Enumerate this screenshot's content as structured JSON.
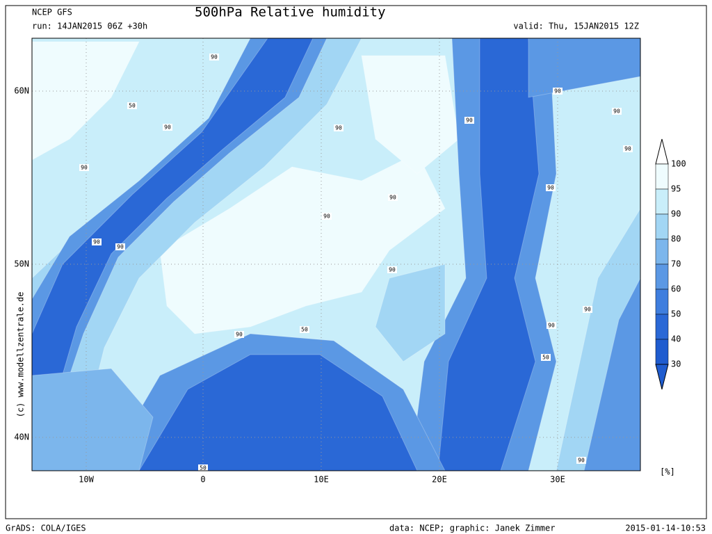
{
  "header": {
    "model": "NCEP GFS",
    "title": "500hPa Relative humidity",
    "run": "run: 14JAN2015 06Z +30h",
    "valid": "valid: Thu, 15JAN2015 12Z"
  },
  "axes": {
    "lat_labels": [
      "60N",
      "50N",
      "40N"
    ],
    "lon_labels": [
      "10W",
      "0",
      "10E",
      "20E",
      "30E"
    ]
  },
  "colorbar": {
    "labels": [
      "100",
      "95",
      "90",
      "80",
      "70",
      "60",
      "50",
      "40",
      "30"
    ],
    "unit": "[%]"
  },
  "credit": "(c) www.modellzentrale.de",
  "contour_labels": [
    "90",
    "50",
    "90",
    "90",
    "90",
    "90",
    "90",
    "90",
    "90",
    "90",
    "50",
    "90",
    "90",
    "90",
    "90",
    "90",
    "90",
    "90",
    "90",
    "50",
    "50",
    "90"
  ],
  "footer": {
    "left": "GrADS: COLA/IGES",
    "center": "data: NCEP; graphic: Janek Zimmer",
    "right": "2015-01-14-10:53"
  }
}
